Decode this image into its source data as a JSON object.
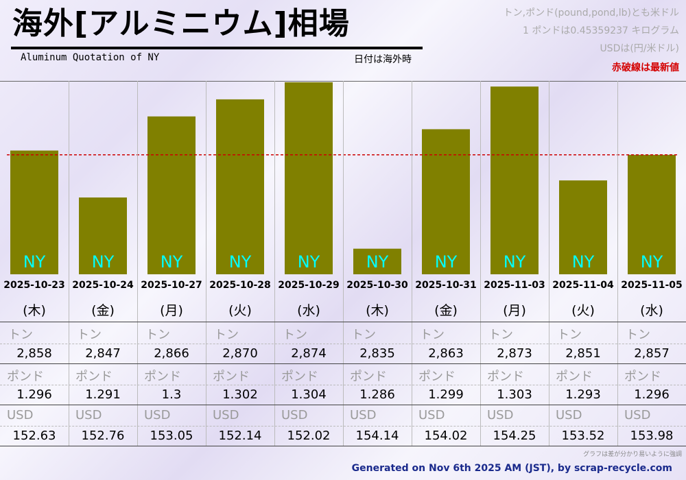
{
  "header": {
    "title": "海外[アルミニウム]相場",
    "subtitle": "Aluminum Quotation of NY",
    "date_note": "日付は海外時",
    "notes": [
      "トン,ポンド(pound,pond,lb)とも米ドル",
      "1 ポンドは0.45359237 キログラム",
      "USDは(円/米ドル)",
      "赤破線は最新値"
    ]
  },
  "colors": {
    "bar": "#808000",
    "bar_label": "#00ffff",
    "latest_line": "#cc0000"
  },
  "row_labels": {
    "ton": "トン",
    "pound": "ポンド",
    "usd": "USD"
  },
  "chart_data": {
    "type": "bar",
    "title": "海外[アルミニウム]相場",
    "series_label": "NY",
    "categories": [
      "2025-10-23",
      "2025-10-24",
      "2025-10-27",
      "2025-10-28",
      "2025-10-29",
      "2025-10-30",
      "2025-10-31",
      "2025-11-03",
      "2025-11-04",
      "2025-11-05"
    ],
    "weekdays": [
      "(木)",
      "(金)",
      "(月)",
      "(火)",
      "(水)",
      "(木)",
      "(金)",
      "(月)",
      "(火)",
      "(水)"
    ],
    "values": [
      2858,
      2847,
      2866,
      2870,
      2874,
      2835,
      2863,
      2873,
      2851,
      2857
    ],
    "ton": [
      "2,858",
      "2,847",
      "2,866",
      "2,870",
      "2,874",
      "2,835",
      "2,863",
      "2,873",
      "2,851",
      "2,857"
    ],
    "pound": [
      "1.296",
      "1.291",
      "1.3",
      "1.302",
      "1.304",
      "1.286",
      "1.299",
      "1.303",
      "1.293",
      "1.296"
    ],
    "usd": [
      "152.63",
      "152.76",
      "153.05",
      "152.14",
      "152.02",
      "154.14",
      "154.02",
      "154.25",
      "153.52",
      "153.98"
    ],
    "ylim": [
      2829,
      2874
    ],
    "latest_value": 2857
  },
  "footer": {
    "footnote": "グラフは差が分かり易いように強調",
    "credit": "Generated on Nov 6th 2025 AM (JST), by scrap-recycle.com"
  }
}
